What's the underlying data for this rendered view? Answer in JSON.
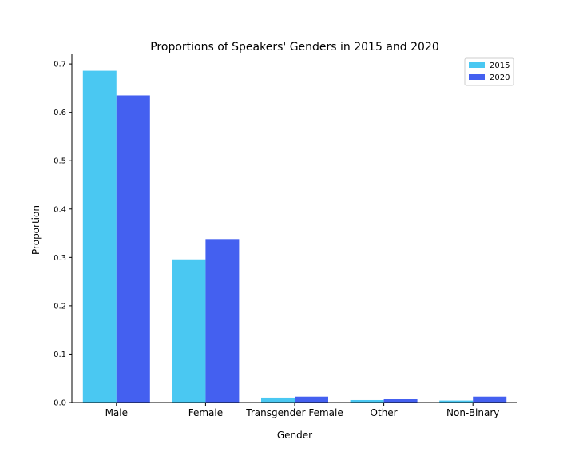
{
  "chart_data": {
    "type": "bar",
    "title": "Proportions of Speakers' Genders in 2015 and 2020",
    "xlabel": "Gender",
    "ylabel": "Proportion",
    "categories": [
      "Male",
      "Female",
      "Transgender Female",
      "Other",
      "Non-Binary"
    ],
    "series": [
      {
        "name": "2015",
        "color": "#4ac8f2",
        "values": [
          0.686,
          0.296,
          0.01,
          0.005,
          0.004
        ]
      },
      {
        "name": "2020",
        "color": "#4460f0",
        "values": [
          0.635,
          0.338,
          0.012,
          0.007,
          0.012
        ]
      }
    ],
    "ylim": [
      0,
      0.72
    ],
    "yticks": [
      "0.0",
      "0.1",
      "0.2",
      "0.3",
      "0.4",
      "0.5",
      "0.6",
      "0.7"
    ],
    "grid": false,
    "legend_position": "top-right"
  }
}
